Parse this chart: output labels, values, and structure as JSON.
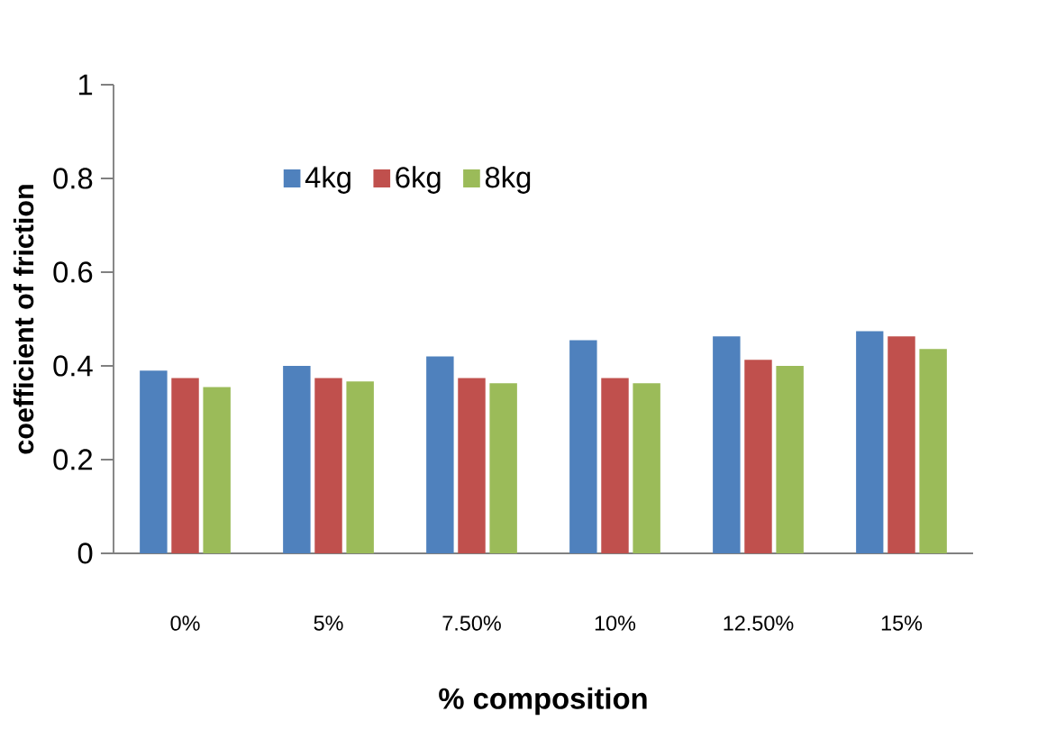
{
  "chart_data": {
    "type": "bar",
    "xlabel": "% composition",
    "ylabel": "coefficient of friction",
    "categories": [
      "0%",
      "5%",
      "7.50%",
      "10%",
      "12.50%",
      "15%"
    ],
    "series": [
      {
        "name": "4kg",
        "color": "#4f81bd",
        "values": [
          0.39,
          0.4,
          0.42,
          0.455,
          0.463,
          0.474
        ]
      },
      {
        "name": "6kg",
        "color": "#c0504d",
        "values": [
          0.374,
          0.374,
          0.374,
          0.374,
          0.413,
          0.463
        ]
      },
      {
        "name": "8kg",
        "color": "#9bbb59",
        "values": [
          0.355,
          0.367,
          0.363,
          0.363,
          0.4,
          0.436
        ]
      }
    ],
    "ylim": [
      0,
      1
    ],
    "yticks": [
      0,
      0.2,
      0.4,
      0.6,
      0.8,
      1
    ],
    "grid": false,
    "legend": "top left"
  }
}
